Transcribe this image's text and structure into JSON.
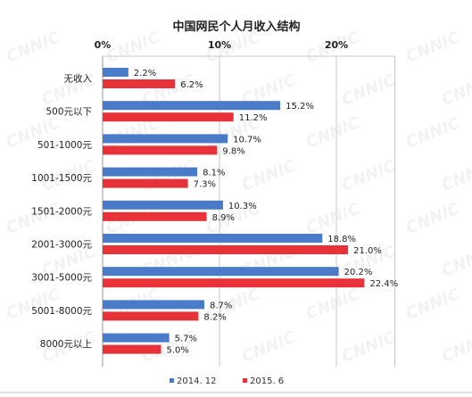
{
  "chart_data": {
    "type": "bar",
    "orientation": "horizontal",
    "title": "中国网民个人月收入结构",
    "categories": [
      "无收入",
      "500元以下",
      "501-1000元",
      "1001-1500元",
      "1501-2000元",
      "2001-3000元",
      "3001-5000元",
      "5001-8000元",
      "8000元以上"
    ],
    "series": [
      {
        "name": "2014. 12",
        "values": [
          2.2,
          15.2,
          10.7,
          8.1,
          10.3,
          18.8,
          20.2,
          8.7,
          5.7
        ],
        "color": "#4a7bc8"
      },
      {
        "name": "2015. 6",
        "values": [
          6.2,
          11.2,
          9.8,
          7.3,
          8.9,
          21.0,
          22.4,
          8.2,
          5.0
        ],
        "color": "#e8323a"
      }
    ],
    "value_labels": [
      [
        "2.2%",
        "15.2%",
        "10.7%",
        "8.1%",
        "10.3%",
        "18.8%",
        "20.2%",
        "8.7%",
        "5.7%"
      ],
      [
        "6.2%",
        "11.2%",
        "9.8%",
        "7.3%",
        "8.9%",
        "21.0%",
        "22.4%",
        "8.2%",
        "5.0%"
      ]
    ],
    "xlim": [
      0,
      25
    ],
    "x_ticks": [
      "0%",
      "10%",
      "20%"
    ],
    "x_tick_values": [
      0,
      10,
      20
    ],
    "axis_position": "top",
    "grid": true,
    "legend_position": "bottom"
  },
  "watermark": "CNNIC"
}
